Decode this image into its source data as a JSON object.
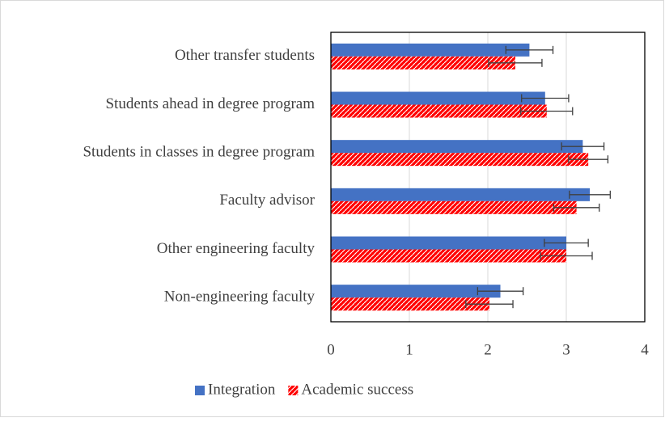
{
  "chart_data": {
    "type": "bar",
    "orientation": "horizontal",
    "categories": [
      "Other transfer students",
      "Students ahead in degree program",
      "Students in classes in degree program",
      "Faculty advisor",
      "Other engineering faculty",
      "Non-engineering faculty"
    ],
    "series": [
      {
        "name": "Integration",
        "color": "#4472c4",
        "values": [
          2.53,
          2.73,
          3.21,
          3.3,
          3.0,
          2.16
        ],
        "errors": [
          0.3,
          0.3,
          0.27,
          0.26,
          0.28,
          0.29
        ]
      },
      {
        "name": "Academic success",
        "color": "#ff0000",
        "pattern": true,
        "values": [
          2.35,
          2.75,
          3.28,
          3.13,
          3.0,
          2.02
        ],
        "errors": [
          0.34,
          0.33,
          0.25,
          0.29,
          0.33,
          0.3
        ]
      }
    ],
    "xlim": [
      0,
      4
    ],
    "xticks": [
      0,
      1,
      2,
      3,
      4
    ],
    "grid": true,
    "legend": "bottom"
  }
}
